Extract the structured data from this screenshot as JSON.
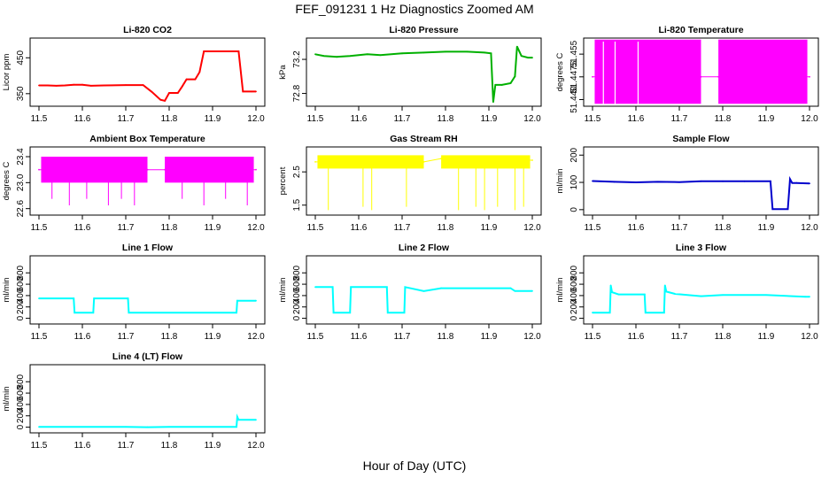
{
  "figure": {
    "title": "FEF_091231  1 Hz Diagnostics Zoomed AM",
    "xlabel": "Hour of Day (UTC)"
  },
  "chart_data": [
    {
      "type": "line",
      "title": "Li-820 CO2",
      "ylabel": "Licor ppm",
      "color": "#ff0000",
      "xlim": [
        11.5,
        12.0
      ],
      "ylim": [
        315,
        505
      ],
      "xticks": [
        "11.5",
        "11.6",
        "11.7",
        "11.8",
        "11.9",
        "12.0"
      ],
      "yticks": [
        {
          "v": 350,
          "label": "350"
        },
        {
          "v": 450,
          "label": "450"
        }
      ],
      "x": [
        11.5,
        11.52,
        11.54,
        11.56,
        11.58,
        11.6,
        11.62,
        11.65,
        11.7,
        11.74,
        11.76,
        11.78,
        11.79,
        11.8,
        11.82,
        11.83,
        11.84,
        11.86,
        11.87,
        11.88,
        11.9,
        11.92,
        11.95,
        11.96,
        11.97,
        11.99,
        12.0
      ],
      "y": [
        373,
        373,
        372,
        373,
        375,
        375,
        372,
        373,
        374,
        374,
        355,
        333,
        330,
        352,
        352,
        370,
        390,
        390,
        410,
        468,
        468,
        468,
        468,
        468,
        356,
        356,
        356
      ]
    },
    {
      "type": "line",
      "title": "Li-820 Pressure",
      "ylabel": "kPa",
      "color": "#00b000",
      "xlim": [
        11.5,
        12.0
      ],
      "ylim": [
        72.65,
        73.45
      ],
      "xticks": [
        "11.5",
        "11.6",
        "11.7",
        "11.8",
        "11.9",
        "12.0"
      ],
      "yticks": [
        {
          "v": 72.8,
          "label": "72.8"
        },
        {
          "v": 73.2,
          "label": "73.2"
        }
      ],
      "x": [
        11.5,
        11.52,
        11.55,
        11.58,
        11.6,
        11.62,
        11.65,
        11.7,
        11.75,
        11.8,
        11.85,
        11.89,
        11.905,
        11.91,
        11.915,
        11.93,
        11.95,
        11.96,
        11.965,
        11.975,
        11.99,
        12.0
      ],
      "y": [
        73.26,
        73.24,
        73.23,
        73.24,
        73.25,
        73.26,
        73.25,
        73.27,
        73.28,
        73.29,
        73.29,
        73.28,
        73.27,
        72.7,
        72.9,
        72.9,
        72.92,
        73.0,
        73.35,
        73.24,
        73.22,
        73.22
      ]
    },
    {
      "type": "line",
      "title": "Li-820 Temperature",
      "ylabel": "degrees C",
      "color": "#ff00ff",
      "xlim": [
        11.5,
        12.0
      ],
      "ylim": [
        51.4378,
        51.4603
      ],
      "xticks": [
        "11.5",
        "11.6",
        "11.7",
        "11.8",
        "11.9",
        "12.0"
      ],
      "yticks": [
        {
          "v": 51.44,
          "label": "51.440"
        },
        {
          "v": 51.4475,
          "label": "51.4475"
        },
        {
          "v": 51.455,
          "label": "51.455"
        }
      ],
      "x": [
        11.5,
        11.75,
        11.79,
        12.0
      ],
      "y": [
        51.4475,
        51.4475,
        51.4475,
        51.4475
      ],
      "band": {
        "low": 51.4386,
        "high": 51.4598
      },
      "segments": [
        [
          11.505,
          11.75
        ],
        [
          11.79,
          11.995
        ]
      ]
    },
    {
      "type": "line",
      "title": "Ambient Box Temperature",
      "ylabel": "degrees C",
      "color": "#ff00ff",
      "xlim": [
        11.5,
        12.0
      ],
      "ylim": [
        22.5,
        23.55
      ],
      "xticks": [
        "11.5",
        "11.6",
        "11.7",
        "11.8",
        "11.9",
        "12.0"
      ],
      "yticks": [
        {
          "v": 22.6,
          "label": "22.6"
        },
        {
          "v": 23.0,
          "label": "23.0"
        },
        {
          "v": 23.4,
          "label": "23.4"
        }
      ],
      "x": [
        11.5,
        11.75,
        11.79,
        12.0
      ],
      "y": [
        23.2,
        23.2,
        23.2,
        23.2
      ],
      "band": {
        "low": 23.0,
        "high": 23.4
      },
      "segments": [
        [
          11.505,
          11.75
        ],
        [
          11.79,
          11.995
        ]
      ]
    },
    {
      "type": "line",
      "title": "Gas Stream RH",
      "ylabel": "percent",
      "color": "#ffff00",
      "xlim": [
        11.5,
        12.0
      ],
      "ylim": [
        1.2,
        3.25
      ],
      "xticks": [
        "11.5",
        "11.6",
        "11.7",
        "11.8",
        "11.9",
        "12.0"
      ],
      "yticks": [
        {
          "v": 1.5,
          "label": "1.5"
        },
        {
          "v": 2.5,
          "label": "2.5"
        }
      ],
      "x": [
        11.5,
        11.75,
        11.79,
        12.0
      ],
      "y": [
        2.8,
        2.8,
        2.9,
        2.85
      ],
      "band": {
        "low": 2.6,
        "high": 3.0
      },
      "segments": [
        [
          11.505,
          11.75
        ],
        [
          11.79,
          11.995
        ]
      ]
    },
    {
      "type": "line",
      "title": "Sample Flow",
      "ylabel": "ml/min",
      "color": "#0000cc",
      "xlim": [
        11.5,
        12.0
      ],
      "ylim": [
        -20,
        230
      ],
      "xticks": [
        "11.5",
        "11.6",
        "11.7",
        "11.8",
        "11.9",
        "12.0"
      ],
      "yticks": [
        {
          "v": 0,
          "label": "0"
        },
        {
          "v": 100,
          "label": "100"
        },
        {
          "v": 200,
          "label": "200"
        }
      ],
      "x": [
        11.5,
        11.55,
        11.6,
        11.65,
        11.7,
        11.75,
        11.8,
        11.85,
        11.91,
        11.915,
        11.95,
        11.955,
        11.96,
        11.97,
        12.0
      ],
      "y": [
        105,
        102,
        100,
        102,
        101,
        104,
        104,
        104,
        104,
        2,
        2,
        112,
        98,
        98,
        96
      ]
    },
    {
      "type": "line",
      "title": "Line 1 Flow",
      "ylabel": "ml/min",
      "color": "#00ffff",
      "xlim": [
        11.5,
        12.0
      ],
      "ylim": [
        -100,
        1100
      ],
      "xticks": [
        "11.5",
        "11.6",
        "11.7",
        "11.8",
        "11.9",
        "12.0"
      ],
      "yticks": [
        {
          "v": 0,
          "label": "0"
        },
        {
          "v": 200,
          "label": "200"
        },
        {
          "v": 400,
          "label": "400"
        },
        {
          "v": 600,
          "label": "600"
        },
        {
          "v": 800,
          "label": "800"
        }
      ],
      "x": [
        11.5,
        11.58,
        11.582,
        11.625,
        11.627,
        11.705,
        11.707,
        11.955,
        11.957,
        12.0
      ],
      "y": [
        350,
        350,
        100,
        100,
        350,
        350,
        100,
        100,
        310,
        310
      ]
    },
    {
      "type": "line",
      "title": "Line 2 Flow",
      "ylabel": "ml/min",
      "color": "#00ffff",
      "xlim": [
        11.5,
        12.0
      ],
      "ylim": [
        -100,
        1100
      ],
      "xticks": [
        "11.5",
        "11.6",
        "11.7",
        "11.8",
        "11.9",
        "12.0"
      ],
      "yticks": [
        {
          "v": 0,
          "label": "0"
        },
        {
          "v": 200,
          "label": "200"
        },
        {
          "v": 400,
          "label": "400"
        },
        {
          "v": 600,
          "label": "600"
        },
        {
          "v": 800,
          "label": "800"
        }
      ],
      "x": [
        11.5,
        11.54,
        11.542,
        11.58,
        11.582,
        11.665,
        11.667,
        11.705,
        11.707,
        11.75,
        11.79,
        11.95,
        11.96,
        12.0
      ],
      "y": [
        550,
        550,
        100,
        100,
        550,
        550,
        100,
        100,
        550,
        480,
        530,
        530,
        480,
        480
      ]
    },
    {
      "type": "line",
      "title": "Line 3 Flow",
      "ylabel": "ml/min",
      "color": "#00ffff",
      "xlim": [
        11.5,
        12.0
      ],
      "ylim": [
        -100,
        1100
      ],
      "xticks": [
        "11.5",
        "11.6",
        "11.7",
        "11.8",
        "11.9",
        "12.0"
      ],
      "yticks": [
        {
          "v": 0,
          "label": "0"
        },
        {
          "v": 200,
          "label": "200"
        },
        {
          "v": 400,
          "label": "400"
        },
        {
          "v": 600,
          "label": "600"
        },
        {
          "v": 800,
          "label": "800"
        }
      ],
      "x": [
        11.5,
        11.54,
        11.542,
        11.545,
        11.56,
        11.62,
        11.622,
        11.665,
        11.667,
        11.67,
        11.69,
        11.75,
        11.8,
        11.9,
        11.99,
        12.0
      ],
      "y": [
        100,
        100,
        580,
        460,
        420,
        420,
        100,
        100,
        580,
        470,
        430,
        390,
        410,
        410,
        380,
        380
      ]
    },
    {
      "type": "line",
      "title": "Line 4 (LT) Flow",
      "ylabel": "ml/min",
      "color": "#00ffff",
      "xlim": [
        11.5,
        12.0
      ],
      "ylim": [
        -100,
        1100
      ],
      "xticks": [
        "11.5",
        "11.6",
        "11.7",
        "11.8",
        "11.9",
        "12.0"
      ],
      "yticks": [
        {
          "v": 0,
          "label": "0"
        },
        {
          "v": 200,
          "label": "200"
        },
        {
          "v": 400,
          "label": "400"
        },
        {
          "v": 600,
          "label": "600"
        },
        {
          "v": 800,
          "label": "800"
        }
      ],
      "x": [
        11.5,
        11.7,
        11.75,
        11.8,
        11.955,
        11.957,
        11.96,
        12.0
      ],
      "y": [
        5,
        5,
        0,
        5,
        5,
        180,
        130,
        130
      ]
    }
  ]
}
